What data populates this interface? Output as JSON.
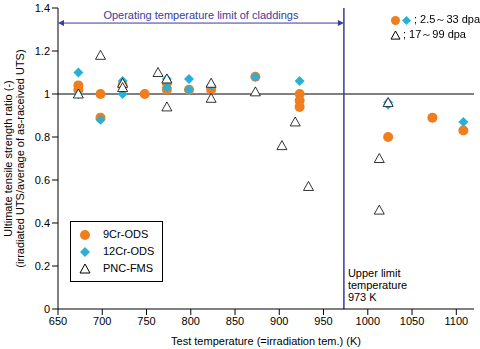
{
  "chart_data": {
    "type": "scatter",
    "x_label": "Test temperature (=irradiation tem.) (K)",
    "y_label": [
      "Ultimate tensile strength ratio (-)",
      "(irradiated UTS/average of as-raceived UTS)"
    ],
    "xlim": [
      650,
      1120
    ],
    "xticks": [
      650,
      700,
      750,
      800,
      850,
      900,
      950,
      1000,
      1050,
      1100
    ],
    "ylim": [
      0,
      1.4
    ],
    "yticks": [
      0,
      0.2,
      0.4,
      0.6,
      0.8,
      1,
      1.2,
      1.4
    ],
    "grid": false,
    "legend": "lower left",
    "hline": 1,
    "vline": 973,
    "arrow_text": "Operating temperature limit of claddings",
    "vline_text": [
      "Upper limit",
      "temperature",
      "973 K"
    ],
    "dpa_legend": [
      {
        "text": "; 2.5～33 dpa",
        "series": [
          "9Cr-ODS",
          "12Cr-ODS"
        ]
      },
      {
        "text": "; 17～99 dpa",
        "series": [
          "PNC-FMS"
        ]
      }
    ],
    "series": [
      {
        "name": "9Cr-ODS",
        "color": "#f07d1e",
        "marker": "circle",
        "x": [
          673,
          673,
          698,
          698,
          723,
          748,
          773,
          773,
          798,
          823,
          873,
          923,
          923,
          923,
          1023,
          1073,
          1108
        ],
        "values": [
          1.04,
          1.02,
          1.0,
          0.89,
          1.04,
          1.0,
          1.02,
          1.05,
          1.02,
          1.02,
          1.08,
          1.0,
          0.97,
          0.94,
          0.8,
          0.89,
          0.83
        ]
      },
      {
        "name": "12Cr-ODS",
        "color": "#2ab0d6",
        "marker": "diamond",
        "x": [
          673,
          673,
          698,
          723,
          723,
          773,
          773,
          798,
          798,
          823,
          873,
          923,
          1023,
          1023,
          1108
        ],
        "values": [
          1.1,
          1.0,
          0.88,
          1.06,
          1.0,
          1.07,
          1.03,
          1.07,
          1.02,
          1.04,
          1.08,
          1.06,
          0.96,
          0.95,
          0.87
        ]
      },
      {
        "name": "PNC-FMS",
        "color": "#000000",
        "marker": "triangle-open",
        "x": [
          673,
          698,
          723,
          723,
          763,
          773,
          773,
          823,
          823,
          873,
          903,
          918,
          933,
          1013,
          1013,
          1023
        ],
        "values": [
          1.0,
          1.18,
          1.05,
          1.03,
          1.1,
          0.94,
          1.07,
          1.05,
          0.98,
          1.01,
          0.76,
          0.87,
          0.57,
          0.7,
          0.46,
          0.96
        ]
      }
    ]
  }
}
